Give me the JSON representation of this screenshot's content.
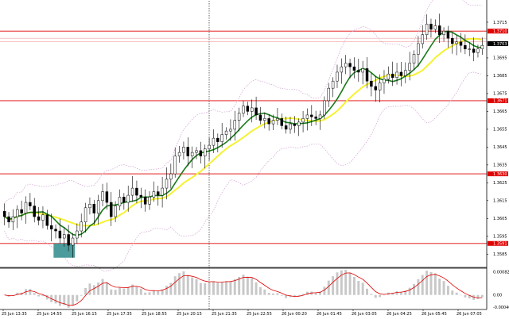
{
  "chart_data": {
    "type": "candlestick",
    "colors": {
      "background": "#ffffff",
      "candle": "#000000",
      "ma_fast": "#1a7a1a",
      "ma_slow": "#f5f232",
      "bollinger": "#d0a0d0",
      "level_line": "#e00000",
      "level_tag": "#e00000",
      "current_tag": "#000000",
      "macd_hist": "#c8c8c8",
      "macd_signal": "#e00000",
      "signal_box": "#2e8b8b",
      "grid_vertical": "#000000"
    },
    "price_axis": {
      "ylim": [
        1.3578,
        1.3727
      ],
      "ticks": [
        "1.3715",
        "1.3695",
        "1.3685",
        "1.3675",
        "1.3665",
        "1.3655",
        "1.3645",
        "1.3635",
        "1.3625",
        "1.3615",
        "1.3605",
        "1.3595",
        "1.3585"
      ]
    },
    "levels": [
      {
        "label": "1.3710",
        "value": 1.371
      },
      {
        "label": "1.3671",
        "value": 1.3671
      },
      {
        "label": "1.3630",
        "value": 1.363
      },
      {
        "label": "1.3591",
        "value": 1.3591
      }
    ],
    "pale_levels": [
      1.3706,
      1.3704
    ],
    "current_price": {
      "label": "1.3703",
      "value": 1.3703
    },
    "time_ticks": [
      "25 Jun 13:35",
      "25 Jun 14:55",
      "25 Jun 16:15",
      "25 Jun 17:35",
      "25 Jun 18:55",
      "25 Jun 20:15",
      "25 Jun 21:35",
      "25 Jun 22:55",
      "26 Jun 00:20",
      "26 Jun 01:45",
      "26 Jun 03:05",
      "26 Jun 04:25",
      "26 Jun 05:45",
      "26 Jun 07:05"
    ],
    "candles_close": [
      1.3606,
      1.3603,
      1.3606,
      1.361,
      1.3608,
      1.3614,
      1.3612,
      1.3606,
      1.3604,
      1.3607,
      1.3601,
      1.3599,
      1.3598,
      1.3594,
      1.3596,
      1.359,
      1.3594,
      1.3598,
      1.3603,
      1.3611,
      1.3613,
      1.3608,
      1.3615,
      1.362,
      1.3614,
      1.3606,
      1.3612,
      1.3617,
      1.3614,
      1.3618,
      1.3622,
      1.3618,
      1.3617,
      1.3613,
      1.3617,
      1.362,
      1.3618,
      1.3622,
      1.3627,
      1.363,
      1.364,
      1.3642,
      1.3645,
      1.364,
      1.3642,
      1.3643,
      1.364,
      1.3644,
      1.3646,
      1.365,
      1.3648,
      1.3652,
      1.3654,
      1.3655,
      1.366,
      1.3664,
      1.3668,
      1.3665,
      1.3667,
      1.3663,
      1.366,
      1.3661,
      1.3658,
      1.366,
      1.3661,
      1.3657,
      1.3655,
      1.3658,
      1.3657,
      1.3659,
      1.3661,
      1.3663,
      1.3662,
      1.3661,
      1.3663,
      1.3671,
      1.3678,
      1.3682,
      1.3687,
      1.369,
      1.3692,
      1.369,
      1.3688,
      1.3687,
      1.3689,
      1.3682,
      1.3679,
      1.3677,
      1.3681,
      1.3683,
      1.3686,
      1.3684,
      1.3687,
      1.3685,
      1.3688,
      1.3692,
      1.3697,
      1.3703,
      1.3708,
      1.3714,
      1.3711,
      1.3713,
      1.3708,
      1.371,
      1.3706,
      1.3703,
      1.3704,
      1.3702,
      1.37,
      1.37,
      1.3698,
      1.37,
      1.3702
    ],
    "macd_axis": {
      "ylim": [
        -0.00052,
        0.00093
      ],
      "ticks": [
        "0.00082",
        "0.00",
        "-0.00046"
      ]
    },
    "signal_box": {
      "from_index": 12,
      "to_index": 16,
      "price_low": 1.3583,
      "price_high": 1.3591
    }
  }
}
